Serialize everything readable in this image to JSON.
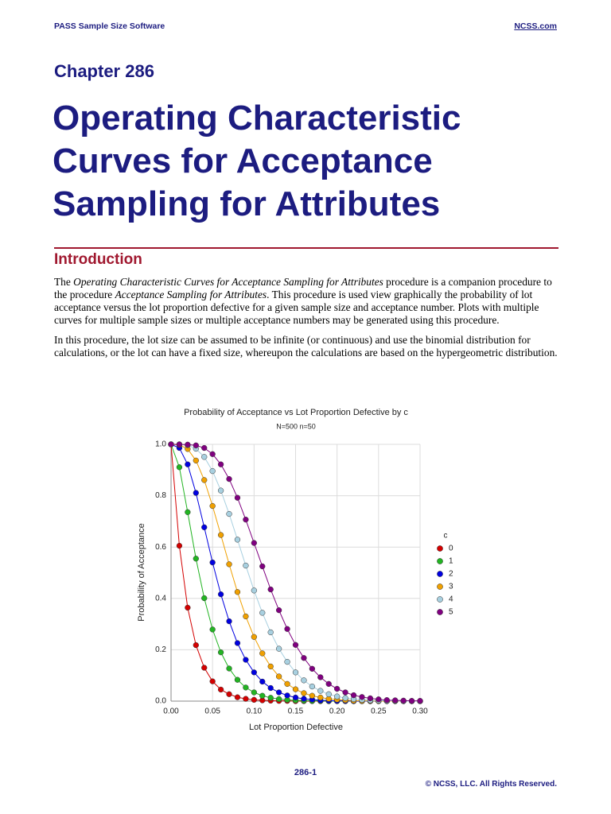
{
  "header": {
    "left": "PASS Sample Size Software",
    "right": "NCSS.com"
  },
  "chapter": "Chapter 286",
  "title_lines": [
    "Operating Characteristic",
    "Curves for Acceptance",
    "Sampling for Attributes"
  ],
  "section": "Introduction",
  "paragraphs": [
    [
      {
        "text": "The ",
        "italic": false
      },
      {
        "text": "Operating Characteristic Curves for Acceptance Sampling for Attributes",
        "italic": true
      },
      {
        "text": " procedure is a companion procedure to the procedure ",
        "italic": false
      },
      {
        "text": "Acceptance Sampling for Attributes",
        "italic": true
      },
      {
        "text": ". This procedure is used view graphically the probability of lot acceptance versus the lot proportion defective for a given sample size and acceptance number. Plots with multiple curves for multiple sample sizes or multiple acceptance numbers may be generated using this procedure.",
        "italic": false
      }
    ],
    [
      {
        "text": "In this procedure, the lot size can be assumed to be infinite (or continuous) and use the binomial distribution for calculations, or the lot can have a fixed size, whereupon the calculations are based on the hypergeometric distribution.",
        "italic": false
      }
    ]
  ],
  "chart_data": {
    "type": "line",
    "title": "Probability of Acceptance vs Lot Proportion Defective by c",
    "subtitle": "N=500 n=50",
    "x_label": "Lot Proportion Defective",
    "y_label": "Probability of Acceptance",
    "legend_title": "c",
    "grid": true,
    "x": [
      0,
      0.01,
      0.02,
      0.03,
      0.04,
      0.05,
      0.06,
      0.07,
      0.08,
      0.09,
      0.1,
      0.11,
      0.12,
      0.13,
      0.14,
      0.15,
      0.16,
      0.17,
      0.18,
      0.19,
      0.2,
      0.21,
      0.22,
      0.23,
      0.24,
      0.25,
      0.26,
      0.27,
      0.28,
      0.29,
      0.3
    ],
    "xlim": [
      0,
      0.3
    ],
    "xticks": [
      {
        "value": 0,
        "label": "0.00"
      },
      {
        "value": 0.05,
        "label": "0.05"
      },
      {
        "value": 0.1,
        "label": "0.10"
      },
      {
        "value": 0.15,
        "label": "0.15"
      },
      {
        "value": 0.2,
        "label": "0.20"
      },
      {
        "value": 0.25,
        "label": "0.25"
      },
      {
        "value": 0.3,
        "label": "0.30"
      }
    ],
    "ylim": [
      0,
      1
    ],
    "yticks": [
      {
        "value": 0,
        "label": "0.0"
      },
      0.2,
      0.4,
      0.6,
      0.8,
      {
        "value": 1,
        "label": "1.0"
      }
    ],
    "series": [
      {
        "name": "0",
        "color": "#d40000",
        "values": [
          1,
          0.605,
          0.364,
          0.218,
          0.13,
          0.077,
          0.045,
          0.027,
          0.015,
          0.009,
          0.005,
          0.003,
          0.002,
          0.001,
          0.001,
          0,
          0,
          0,
          0,
          0,
          0,
          0,
          0,
          0,
          0,
          0,
          0,
          0,
          0,
          0,
          0
        ]
      },
      {
        "name": "1",
        "color": "#22b422",
        "values": [
          1,
          0.911,
          0.736,
          0.555,
          0.401,
          0.279,
          0.19,
          0.127,
          0.083,
          0.053,
          0.034,
          0.021,
          0.013,
          0.008,
          0.005,
          0.003,
          0.002,
          0.001,
          0.001,
          0,
          0,
          0,
          0,
          0,
          0,
          0,
          0,
          0,
          0,
          0,
          0
        ]
      },
      {
        "name": "2",
        "color": "#0000e0",
        "values": [
          1,
          0.986,
          0.922,
          0.811,
          0.677,
          0.54,
          0.416,
          0.311,
          0.226,
          0.161,
          0.112,
          0.076,
          0.051,
          0.034,
          0.022,
          0.014,
          0.009,
          0.006,
          0.003,
          0.002,
          0.001,
          0.001,
          0,
          0,
          0,
          0,
          0,
          0,
          0,
          0,
          0
        ]
      },
      {
        "name": "3",
        "color": "#f0a000",
        "values": [
          1,
          0.998,
          0.982,
          0.937,
          0.861,
          0.76,
          0.647,
          0.533,
          0.425,
          0.33,
          0.25,
          0.186,
          0.135,
          0.096,
          0.067,
          0.046,
          0.031,
          0.021,
          0.014,
          0.009,
          0.006,
          0.004,
          0.002,
          0.001,
          0.001,
          0,
          0,
          0,
          0,
          0,
          0
        ]
      },
      {
        "name": "4",
        "color": "#a8d0e0",
        "values": [
          1,
          1,
          0.997,
          0.983,
          0.951,
          0.896,
          0.82,
          0.729,
          0.629,
          0.528,
          0.431,
          0.344,
          0.268,
          0.204,
          0.153,
          0.112,
          0.081,
          0.057,
          0.04,
          0.027,
          0.018,
          0.012,
          0.008,
          0.005,
          0.003,
          0.002,
          0.001,
          0.001,
          0,
          0,
          0
        ]
      },
      {
        "name": "5",
        "color": "#800080",
        "values": [
          1,
          1,
          0.999,
          0.996,
          0.986,
          0.962,
          0.922,
          0.865,
          0.792,
          0.707,
          0.616,
          0.525,
          0.435,
          0.354,
          0.281,
          0.219,
          0.168,
          0.126,
          0.093,
          0.067,
          0.048,
          0.034,
          0.023,
          0.016,
          0.011,
          0.007,
          0.004,
          0.003,
          0.002,
          0.001,
          0.001
        ]
      }
    ]
  },
  "footer": {
    "page": "286-1",
    "copyright": "© NCSS, LLC. All Rights Reserved."
  }
}
